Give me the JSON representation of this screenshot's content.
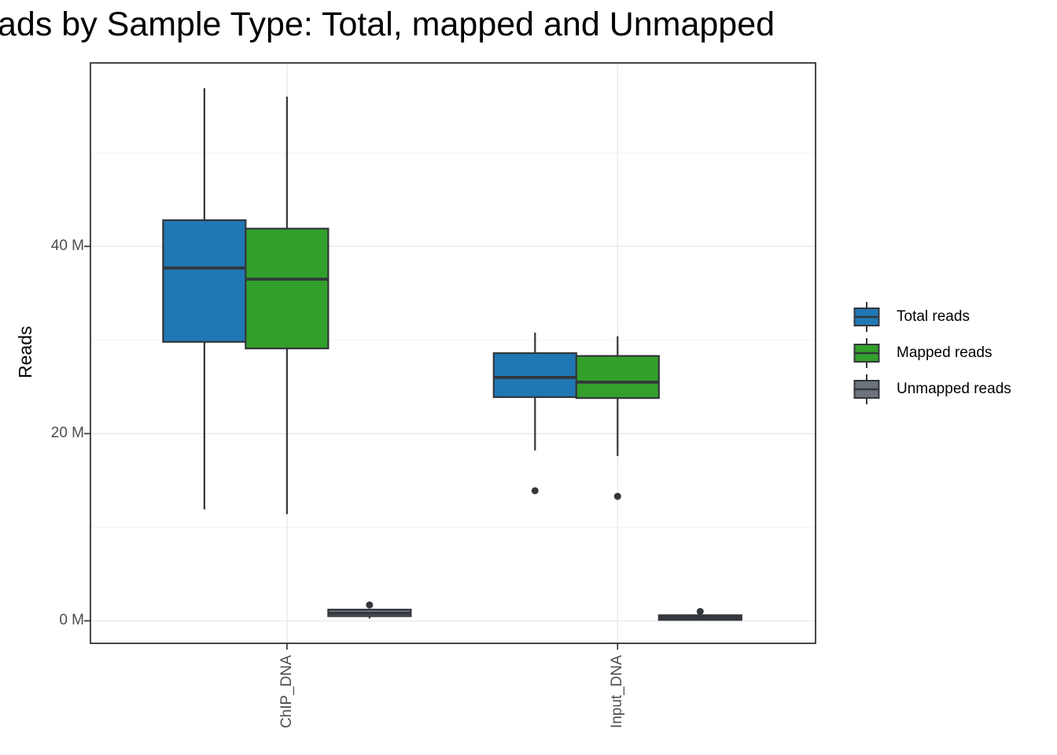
{
  "chart_data": {
    "type": "boxplot",
    "title": "ads by Sample Type: Total, mapped and Unmapped",
    "ylabel": "Reads",
    "xlabel": "",
    "categories": [
      "ChIP_DNA",
      "Input_DNA"
    ],
    "ylim": [
      -2.4,
      59.6
    ],
    "y_unit": "M",
    "yticks": [
      {
        "value": 0,
        "label": "0 M"
      },
      {
        "value": 20,
        "label": "20 M"
      },
      {
        "value": 40,
        "label": "40 M"
      }
    ],
    "y_minor_ticks": [
      10,
      30,
      50
    ],
    "grid": "major-and-minor",
    "legend_position": "right",
    "series": [
      {
        "name": "Total reads",
        "color": "#1F78B4",
        "boxes": [
          {
            "category": "ChIP_DNA",
            "whisker_low": 11.9,
            "q1": 29.8,
            "median": 37.7,
            "q3": 42.8,
            "whisker_high": 56.9,
            "outliers": []
          },
          {
            "category": "Input_DNA",
            "whisker_low": 18.2,
            "q1": 23.9,
            "median": 26.0,
            "q3": 28.6,
            "whisker_high": 30.8,
            "outliers": [
              13.9
            ]
          }
        ]
      },
      {
        "name": "Mapped reads",
        "color": "#33A02C",
        "boxes": [
          {
            "category": "ChIP_DNA",
            "whisker_low": 11.4,
            "q1": 29.1,
            "median": 36.5,
            "q3": 41.9,
            "whisker_high": 56.0,
            "outliers": []
          },
          {
            "category": "Input_DNA",
            "whisker_low": 17.6,
            "q1": 23.8,
            "median": 25.5,
            "q3": 28.3,
            "whisker_high": 30.4,
            "outliers": [
              13.3
            ]
          }
        ]
      },
      {
        "name": "Unmapped reads",
        "color": "#6C737C",
        "boxes": [
          {
            "category": "ChIP_DNA",
            "whisker_low": 0.25,
            "q1": 0.5,
            "median": 0.8,
            "q3": 1.2,
            "whisker_high": 1.25,
            "outliers": [
              1.7
            ]
          },
          {
            "category": "Input_DNA",
            "whisker_low": 0.1,
            "q1": 0.1,
            "median": 0.35,
            "q3": 0.6,
            "whisker_high": 0.65,
            "outliers": [
              1.0
            ]
          }
        ]
      }
    ],
    "style": {
      "box_border": "#33373B",
      "axis": "#333333",
      "grid_major": "#EBEBEB",
      "grid_minor": "#F2F2F2",
      "tick_text": "#4D4D4D",
      "title_text": "#000000",
      "panel_background": "#FFFFFF"
    }
  }
}
